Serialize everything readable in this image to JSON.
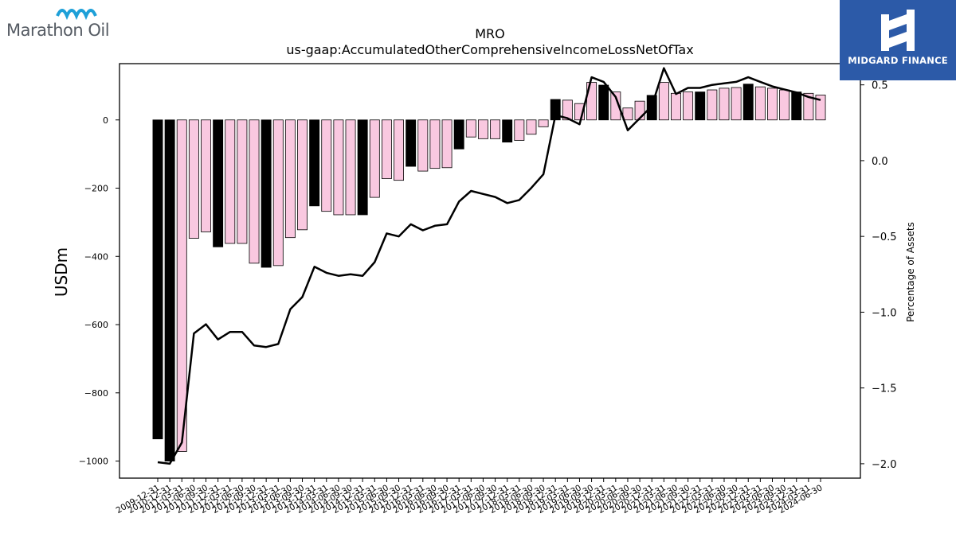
{
  "branding": {
    "left_logo_text": "Marathon Oil",
    "right_logo_text": "MIDGARD FINANCE",
    "left_logo_color": "#1ea0d8",
    "right_logo_bg": "#2c5aa8"
  },
  "chart_data": {
    "type": "bar",
    "title": "MRO",
    "subtitle": "us-gaap:AccumulatedOtherComprehensiveIncomeLossNetOfTax",
    "ylabel": "USDm",
    "y2label": "Percentage of Assets",
    "ylim": [
      -1050,
      165
    ],
    "y2lim": [
      -2.095,
      0.64
    ],
    "yticks": [
      0,
      -200,
      -400,
      -600,
      -800,
      -1000
    ],
    "ytick_labels": [
      "0",
      "−200",
      "−400",
      "−600",
      "−800",
      "−1000"
    ],
    "y2ticks": [
      0.5,
      0.0,
      -0.5,
      -1.0,
      -1.5,
      -2.0
    ],
    "y2tick_labels": [
      "0.5",
      "0.0",
      "−0.5",
      "−1.0",
      "−1.5",
      "−2.0"
    ],
    "categories": [
      "2009-12-31",
      "2010-12-31",
      "2011-03-31",
      "2011-06-30",
      "2011-09-30",
      "2011-12-31",
      "2012-03-31",
      "2012-06-30",
      "2012-09-30",
      "2012-12-31",
      "2013-03-31",
      "2013-06-30",
      "2013-09-30",
      "2013-12-31",
      "2014-03-31",
      "2014-06-30",
      "2014-09-30",
      "2014-12-31",
      "2015-03-31",
      "2015-06-30",
      "2015-09-30",
      "2015-12-31",
      "2016-03-31",
      "2016-06-30",
      "2016-09-30",
      "2016-12-31",
      "2017-03-31",
      "2017-06-30",
      "2017-09-30",
      "2017-12-31",
      "2018-03-31",
      "2018-06-30",
      "2018-09-30",
      "2018-12-31",
      "2019-03-31",
      "2019-06-30",
      "2019-09-30",
      "2019-12-31",
      "2020-03-31",
      "2020-06-30",
      "2020-09-30",
      "2020-12-31",
      "2021-03-31",
      "2021-06-30",
      "2021-09-30",
      "2021-12-31",
      "2022-03-31",
      "2022-06-30",
      "2022-09-30",
      "2022-12-31",
      "2023-03-31",
      "2023-06-30",
      "2023-09-30",
      "2023-12-31",
      "2024-03-31",
      "2024-06-30"
    ],
    "series": [
      {
        "kind": "bar",
        "values": [
          -935,
          -1000,
          -972,
          -347,
          -328,
          -372,
          -362,
          -362,
          -420,
          -432,
          -427,
          -345,
          -322,
          -252,
          -268,
          -278,
          -278,
          -278,
          -227,
          -172,
          -177,
          -136,
          -150,
          -142,
          -140,
          -85,
          -50,
          -55,
          -55,
          -65,
          -60,
          -42,
          -20,
          60,
          58,
          48,
          110,
          102,
          82,
          35,
          55,
          72,
          110,
          78,
          82,
          82,
          88,
          93,
          95,
          105,
          97,
          93,
          88,
          82,
          78,
          73
        ],
        "annual_flags": [
          1,
          1,
          0,
          0,
          0,
          1,
          0,
          0,
          0,
          1,
          0,
          0,
          0,
          1,
          0,
          0,
          0,
          1,
          0,
          0,
          0,
          1,
          0,
          0,
          0,
          1,
          0,
          0,
          0,
          1,
          0,
          0,
          0,
          1,
          0,
          0,
          0,
          1,
          0,
          0,
          0,
          1,
          0,
          0,
          0,
          1,
          0,
          0,
          0,
          1,
          0,
          0,
          0,
          1,
          0,
          0
        ],
        "colors": {
          "annual": "#000000",
          "quarter": "#f9c8e0"
        }
      },
      {
        "kind": "line",
        "axis": "secondary",
        "values": [
          -1.99,
          -2.0,
          -1.86,
          -1.14,
          -1.08,
          -1.18,
          -1.13,
          -1.13,
          -1.22,
          -1.23,
          -1.21,
          -0.98,
          -0.9,
          -0.7,
          -0.74,
          -0.76,
          -0.75,
          -0.76,
          -0.67,
          -0.48,
          -0.5,
          -0.42,
          -0.46,
          -0.43,
          -0.42,
          -0.27,
          -0.2,
          -0.22,
          -0.24,
          -0.28,
          -0.26,
          -0.18,
          -0.09,
          0.3,
          0.28,
          0.24,
          0.55,
          0.52,
          0.42,
          0.2,
          0.28,
          0.36,
          0.61,
          0.44,
          0.48,
          0.48,
          0.5,
          0.51,
          0.52,
          0.55,
          0.52,
          0.49,
          0.47,
          0.45,
          0.42,
          0.4
        ],
        "color": "#000000"
      }
    ]
  }
}
